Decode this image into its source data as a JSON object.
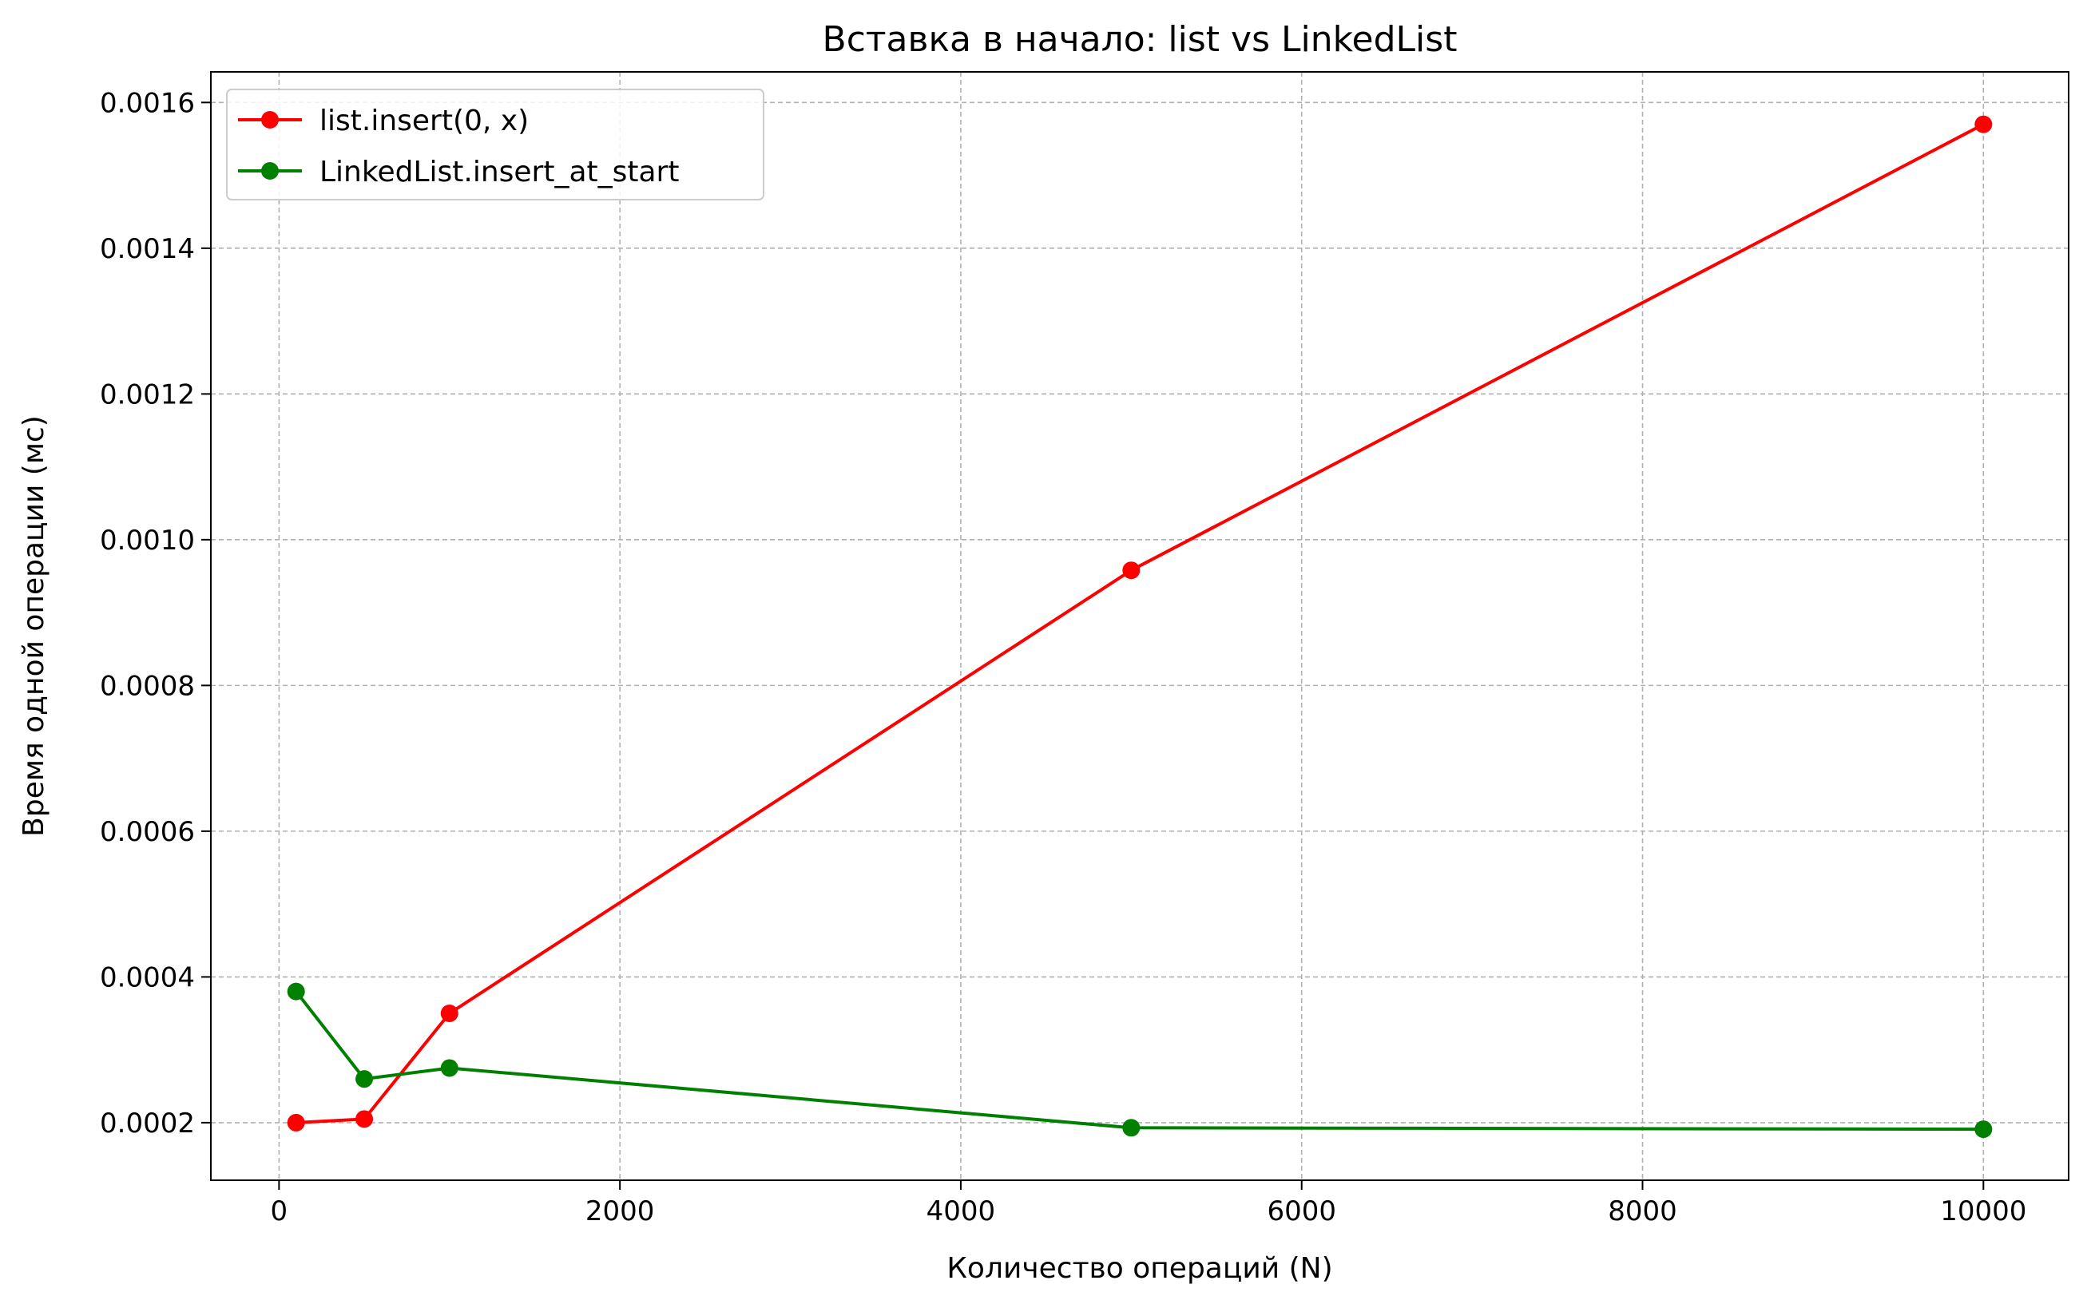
{
  "chart_data": {
    "type": "line",
    "title": "Вставка в начало: list vs LinkedList",
    "xlabel": "Количество операций (N)",
    "ylabel": "Время одной операции (мс)",
    "x": [
      100,
      500,
      1000,
      5000,
      10000
    ],
    "series": [
      {
        "name": "list.insert(0, x)",
        "color": "#ff0000",
        "marker": "circle",
        "values": [
          0.0002,
          0.000205,
          0.00035,
          0.000958,
          0.00157
        ]
      },
      {
        "name": "LinkedList.insert_at_start",
        "color": "#008000",
        "marker": "circle",
        "values": [
          0.00038,
          0.00026,
          0.000275,
          0.000193,
          0.000191
        ]
      }
    ],
    "xlim": [
      -400,
      10500
    ],
    "ylim": [
      0.000121,
      0.001642
    ],
    "xticks": [
      0,
      2000,
      4000,
      6000,
      8000,
      10000
    ],
    "xtick_labels": [
      "0",
      "2000",
      "4000",
      "6000",
      "8000",
      "10000"
    ],
    "yticks": [
      0.0002,
      0.0004,
      0.0006,
      0.0008,
      0.001,
      0.0012,
      0.0014,
      0.0016
    ],
    "ytick_labels": [
      "0.0002",
      "0.0004",
      "0.0006",
      "0.0008",
      "0.0010",
      "0.0012",
      "0.0014",
      "0.0016"
    ],
    "grid": true,
    "grid_style": "dashed",
    "legend_position": "upper-left"
  }
}
